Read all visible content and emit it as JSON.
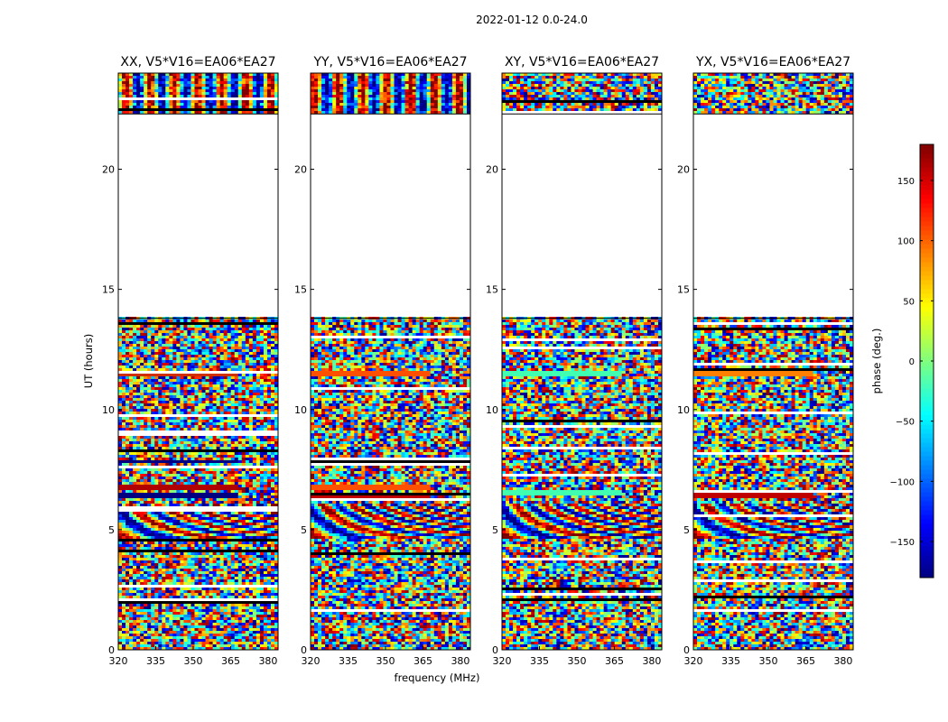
{
  "figure": {
    "suptitle": "2022-01-12 0.0-24.0"
  },
  "chart_data": {
    "type": "heatmap",
    "xlabel": "frequency (MHz)",
    "ylabel": "UT (hours)",
    "xticks": [
      320,
      335,
      350,
      365,
      380
    ],
    "yticks": [
      0,
      5,
      10,
      15,
      20
    ],
    "xlim": [
      320,
      384
    ],
    "ylim": [
      0,
      24
    ],
    "empty_time_range_hours": [
      13.8,
      22.3
    ],
    "panels": [
      {
        "title": "XX, V5*V16=EA06*EA27",
        "fringes_top": true,
        "fringes_mid": true,
        "coherent_bands": [
          [
            6.3,
            6.5,
            "#000080"
          ],
          [
            6.6,
            6.8,
            "#b00000"
          ],
          [
            7.7,
            7.8,
            "#000080"
          ],
          [
            11.3,
            11.6,
            "#d03000"
          ]
        ]
      },
      {
        "title": "YY, V5*V16=EA06*EA27",
        "fringes_top": true,
        "fringes_mid": true,
        "coherent_bands": [
          [
            6.3,
            6.5,
            "#c00000"
          ],
          [
            6.6,
            6.8,
            "#ff5000"
          ],
          [
            7.7,
            7.8,
            "#b00000"
          ],
          [
            11.3,
            11.6,
            "#ff5000"
          ]
        ]
      },
      {
        "title": "XY, V5*V16=EA06*EA27",
        "fringes_top": false,
        "fringes_mid": true,
        "coherent_bands": [
          [
            6.4,
            6.6,
            "#40ffb0"
          ],
          [
            11.3,
            11.6,
            "#40ffb0"
          ]
        ]
      },
      {
        "title": "YX, V5*V16=EA06*EA27",
        "fringes_top": false,
        "fringes_mid": true,
        "coherent_bands": [
          [
            6.3,
            6.5,
            "#c00000"
          ],
          [
            11.3,
            11.6,
            "#ff8000"
          ]
        ]
      }
    ],
    "colorbar": {
      "label": "phase (deg.)",
      "range": [
        -180,
        180
      ],
      "ticks": [
        150,
        100,
        50,
        0,
        -50,
        -100,
        -150
      ],
      "tick_labels": [
        "150",
        "100",
        "50",
        "0",
        "−50",
        "−100",
        "−150"
      ],
      "colormap": "jet"
    }
  }
}
